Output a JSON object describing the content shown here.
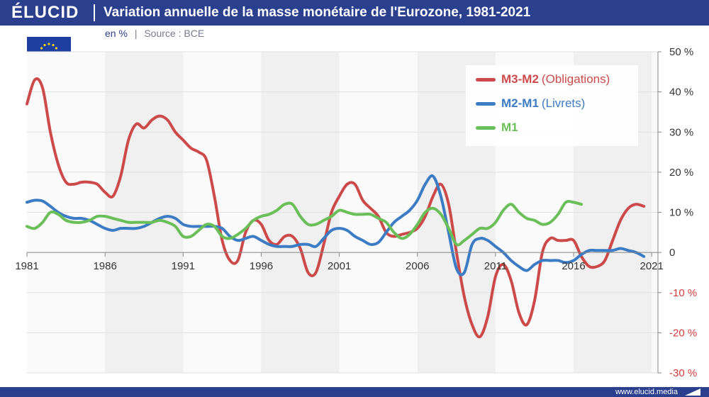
{
  "header": {
    "logo": "ÉLUCID",
    "title": "Variation annuelle de la masse monétaire de l'Eurozone, 1981-2021",
    "unit": "en %",
    "separator": "|",
    "source": "Source : BCE"
  },
  "footer": {
    "url": "www.elucid.media"
  },
  "colors": {
    "brand": "#2b3f8f",
    "negative": "#d63a3a",
    "band": "#f0f0f0"
  },
  "icons": {
    "flag": "eu-flag-icon"
  },
  "chart_data": {
    "type": "line",
    "title": "Variation annuelle de la masse monétaire de l'Eurozone, 1981-2021",
    "subtitle": "en % | Source : BCE",
    "xlabel": "",
    "ylabel": "",
    "xlim": [
      1981,
      2021.4
    ],
    "ylim": [
      -30,
      50
    ],
    "x_ticks": [
      1981,
      1986,
      1991,
      1996,
      2001,
      2006,
      2011,
      2016,
      2021
    ],
    "x_tick_labels": [
      "1981",
      "1986",
      "1991",
      "1996",
      "2001",
      "2006",
      "2011",
      "2016",
      "2021"
    ],
    "y_ticks": [
      50,
      40,
      30,
      20,
      10,
      0,
      -10,
      -20,
      -30
    ],
    "y_tick_labels": [
      "50 %",
      "40 %",
      "30 %",
      "20 %",
      "10 %",
      "0",
      "-10 %",
      "-20 %",
      "-30 %"
    ],
    "grid": true,
    "legend_position": "top-right",
    "series": [
      {
        "name": "M3-M2",
        "description": "(Obligations)",
        "color": "#cc4a4a",
        "points": [
          [
            1981,
            37
          ],
          [
            1981.5,
            43
          ],
          [
            1982,
            41
          ],
          [
            1982.5,
            30
          ],
          [
            1983,
            22
          ],
          [
            1983.5,
            17.5
          ],
          [
            1984,
            17
          ],
          [
            1984.5,
            17.5
          ],
          [
            1985,
            17.5
          ],
          [
            1985.5,
            17
          ],
          [
            1986,
            15
          ],
          [
            1986.5,
            14
          ],
          [
            1987,
            19
          ],
          [
            1987.5,
            28
          ],
          [
            1988,
            32
          ],
          [
            1988.5,
            31
          ],
          [
            1989,
            33
          ],
          [
            1989.5,
            34
          ],
          [
            1990,
            33
          ],
          [
            1990.5,
            30
          ],
          [
            1991,
            28
          ],
          [
            1991.5,
            26
          ],
          [
            1992,
            25
          ],
          [
            1992.5,
            23
          ],
          [
            1993,
            14
          ],
          [
            1993.5,
            3
          ],
          [
            1994,
            -2
          ],
          [
            1994.5,
            -2
          ],
          [
            1995,
            5
          ],
          [
            1995.5,
            8
          ],
          [
            1996,
            7
          ],
          [
            1996.5,
            3
          ],
          [
            1997,
            2
          ],
          [
            1997.5,
            4
          ],
          [
            1998,
            4
          ],
          [
            1998.5,
            1
          ],
          [
            1999,
            -5
          ],
          [
            1999.5,
            -5
          ],
          [
            2000,
            2
          ],
          [
            2000.5,
            10
          ],
          [
            2001,
            14
          ],
          [
            2001.5,
            17
          ],
          [
            2002,
            17
          ],
          [
            2002.5,
            13
          ],
          [
            2003,
            11
          ],
          [
            2003.5,
            9
          ],
          [
            2004,
            5
          ],
          [
            2004.5,
            4
          ],
          [
            2005,
            4.5
          ],
          [
            2005.5,
            5
          ],
          [
            2006,
            6
          ],
          [
            2006.5,
            9
          ],
          [
            2007,
            14
          ],
          [
            2007.5,
            17
          ],
          [
            2008,
            12
          ],
          [
            2008.5,
            0
          ],
          [
            2009,
            -11
          ],
          [
            2009.5,
            -18
          ],
          [
            2010,
            -21
          ],
          [
            2010.5,
            -16
          ],
          [
            2011,
            -6
          ],
          [
            2011.5,
            -3
          ],
          [
            2012,
            -7
          ],
          [
            2012.5,
            -15
          ],
          [
            2013,
            -18
          ],
          [
            2013.5,
            -12
          ],
          [
            2014,
            0
          ],
          [
            2014.5,
            3.5
          ],
          [
            2015,
            3
          ],
          [
            2015.5,
            3
          ],
          [
            2016,
            3
          ],
          [
            2016.5,
            -1
          ],
          [
            2017,
            -3.5
          ],
          [
            2017.5,
            -3.5
          ],
          [
            2018,
            -2
          ],
          [
            2018.5,
            3
          ],
          [
            2019,
            8
          ],
          [
            2019.5,
            11
          ],
          [
            2020,
            12
          ],
          [
            2020.5,
            11.5
          ]
        ]
      },
      {
        "name": "M2-M1",
        "description": "(Livrets)",
        "color": "#3b7cc4",
        "points": [
          [
            1981,
            12.5
          ],
          [
            1981.5,
            13
          ],
          [
            1982,
            12.8
          ],
          [
            1982.5,
            11.5
          ],
          [
            1983,
            10
          ],
          [
            1983.5,
            9
          ],
          [
            1984,
            8.5
          ],
          [
            1984.5,
            8.5
          ],
          [
            1985,
            8
          ],
          [
            1985.5,
            7
          ],
          [
            1986,
            6
          ],
          [
            1986.5,
            5.5
          ],
          [
            1987,
            6
          ],
          [
            1987.5,
            6
          ],
          [
            1988,
            6
          ],
          [
            1988.5,
            6.5
          ],
          [
            1989,
            7.5
          ],
          [
            1989.5,
            8.5
          ],
          [
            1990,
            9
          ],
          [
            1990.5,
            8.5
          ],
          [
            1991,
            7
          ],
          [
            1991.5,
            6.5
          ],
          [
            1992,
            6.5
          ],
          [
            1992.5,
            6.5
          ],
          [
            1993,
            6.5
          ],
          [
            1993.5,
            6
          ],
          [
            1994,
            4
          ],
          [
            1994.5,
            3
          ],
          [
            1995,
            3.5
          ],
          [
            1995.5,
            4
          ],
          [
            1996,
            3
          ],
          [
            1996.5,
            2
          ],
          [
            1997,
            1.5
          ],
          [
            1997.5,
            1.5
          ],
          [
            1998,
            1.5
          ],
          [
            1998.5,
            2
          ],
          [
            1999,
            2
          ],
          [
            1999.5,
            1.5
          ],
          [
            2000,
            3.5
          ],
          [
            2000.5,
            5.5
          ],
          [
            2001,
            6
          ],
          [
            2001.5,
            5.5
          ],
          [
            2002,
            4
          ],
          [
            2002.5,
            3
          ],
          [
            2003,
            2
          ],
          [
            2003.5,
            2.5
          ],
          [
            2004,
            5
          ],
          [
            2004.5,
            7.5
          ],
          [
            2005,
            9
          ],
          [
            2005.5,
            10.5
          ],
          [
            2006,
            13
          ],
          [
            2006.5,
            17
          ],
          [
            2007,
            19
          ],
          [
            2007.5,
            14
          ],
          [
            2008,
            5
          ],
          [
            2008.5,
            -4
          ],
          [
            2009,
            -5
          ],
          [
            2009.5,
            2
          ],
          [
            2010,
            3.5
          ],
          [
            2010.5,
            3
          ],
          [
            2011,
            1.5
          ],
          [
            2011.5,
            0
          ],
          [
            2012,
            -2
          ],
          [
            2012.5,
            -3.5
          ],
          [
            2013,
            -4.5
          ],
          [
            2013.5,
            -3
          ],
          [
            2014,
            -2
          ],
          [
            2014.5,
            -2
          ],
          [
            2015,
            -2
          ],
          [
            2015.5,
            -2.5
          ],
          [
            2016,
            -2
          ],
          [
            2016.5,
            -0.5
          ],
          [
            2017,
            0.5
          ],
          [
            2017.5,
            0.5
          ],
          [
            2018,
            0.5
          ],
          [
            2018.5,
            0.5
          ],
          [
            2019,
            1
          ],
          [
            2019.5,
            0.5
          ],
          [
            2020,
            0
          ],
          [
            2020.5,
            -1
          ]
        ]
      },
      {
        "name": "M1",
        "description": "",
        "color": "#6bbf59",
        "points": [
          [
            1981,
            6.5
          ],
          [
            1981.5,
            6
          ],
          [
            1982,
            7.5
          ],
          [
            1982.5,
            10
          ],
          [
            1983,
            9.5
          ],
          [
            1983.5,
            8
          ],
          [
            1984,
            7.5
          ],
          [
            1984.5,
            7.5
          ],
          [
            1985,
            8
          ],
          [
            1985.5,
            9
          ],
          [
            1986,
            9
          ],
          [
            1986.5,
            8.5
          ],
          [
            1987,
            8
          ],
          [
            1987.5,
            7.5
          ],
          [
            1988,
            7.5
          ],
          [
            1988.5,
            7.5
          ],
          [
            1989,
            7.5
          ],
          [
            1989.5,
            8
          ],
          [
            1990,
            7.5
          ],
          [
            1990.5,
            6.5
          ],
          [
            1991,
            4
          ],
          [
            1991.5,
            4
          ],
          [
            1992,
            5.5
          ],
          [
            1992.5,
            7
          ],
          [
            1993,
            6.5
          ],
          [
            1993.5,
            4
          ],
          [
            1994,
            3.5
          ],
          [
            1994.5,
            4.5
          ],
          [
            1995,
            6
          ],
          [
            1995.5,
            8
          ],
          [
            1996,
            9
          ],
          [
            1996.5,
            9.5
          ],
          [
            1997,
            10.5
          ],
          [
            1997.5,
            12
          ],
          [
            1998,
            12
          ],
          [
            1998.5,
            9
          ],
          [
            1999,
            7
          ],
          [
            1999.5,
            7
          ],
          [
            2000,
            8
          ],
          [
            2000.5,
            9
          ],
          [
            2001,
            10.5
          ],
          [
            2001.5,
            10
          ],
          [
            2002,
            9.5
          ],
          [
            2002.5,
            9.5
          ],
          [
            2003,
            9.5
          ],
          [
            2003.5,
            8.5
          ],
          [
            2004,
            7.5
          ],
          [
            2004.5,
            5
          ],
          [
            2005,
            3.5
          ],
          [
            2005.5,
            4.5
          ],
          [
            2006,
            7
          ],
          [
            2006.5,
            10
          ],
          [
            2007,
            11
          ],
          [
            2007.5,
            9.5
          ],
          [
            2008,
            6
          ],
          [
            2008.5,
            2
          ],
          [
            2009,
            3
          ],
          [
            2009.5,
            4.5
          ],
          [
            2010,
            6
          ],
          [
            2010.5,
            6
          ],
          [
            2011,
            7.5
          ],
          [
            2011.5,
            10.5
          ],
          [
            2012,
            12
          ],
          [
            2012.5,
            10
          ],
          [
            2013,
            8.5
          ],
          [
            2013.5,
            8
          ],
          [
            2014,
            7
          ],
          [
            2014.5,
            7.5
          ],
          [
            2015,
            9.5
          ],
          [
            2015.5,
            12.5
          ],
          [
            2016,
            12.5
          ],
          [
            2016.5,
            12
          ]
        ]
      }
    ]
  }
}
